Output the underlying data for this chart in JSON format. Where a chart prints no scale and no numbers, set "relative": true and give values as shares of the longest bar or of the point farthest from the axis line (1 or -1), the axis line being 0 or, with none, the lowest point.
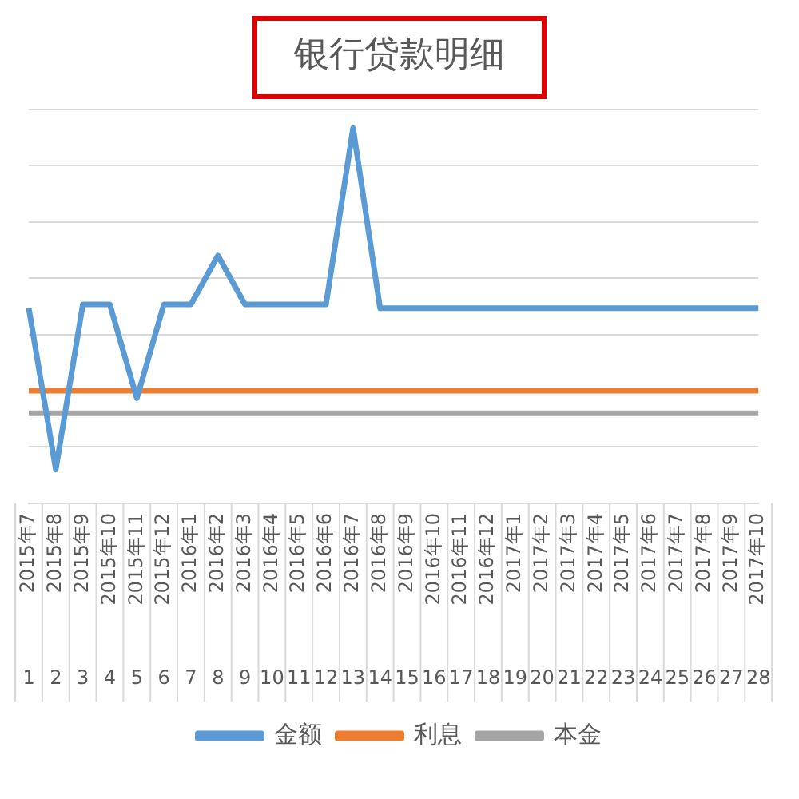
{
  "chart_data": {
    "type": "line",
    "title": "银行贷款明细",
    "relative": true,
    "categories": [
      "2015年7\n1",
      "2015年8\n2",
      "2015年9\n3",
      "2015年10\n4",
      "2015年11\n5",
      "2015年12\n6",
      "2016年1\n7",
      "2016年2\n8",
      "2016年3\n9",
      "2016年4\n10",
      "2016年5\n11",
      "2016年6\n12",
      "2016年7\n13",
      "2016年8\n14",
      "2016年9\n15",
      "2016年10\n16",
      "2016年11\n17",
      "2016年12\n18",
      "2017年1\n19",
      "2017年2\n20",
      "2017年3\n21",
      "2017年4\n22",
      "2017年5\n23",
      "2017年6\n24",
      "2017年7\n25",
      "2017年8\n26",
      "2017年9\n27",
      "2017年10\n28"
    ],
    "series": [
      {
        "name": "金额",
        "color": "#5b9bd5",
        "values": [
          0.52,
          0.09,
          0.53,
          0.53,
          0.28,
          0.53,
          0.53,
          0.66,
          0.53,
          0.53,
          0.53,
          0.53,
          1,
          0.52,
          0.52,
          0.52,
          0.52,
          0.52,
          0.52,
          0.52,
          0.52,
          0.52,
          0.52,
          0.52,
          0.52,
          0.52,
          0.52,
          0.52
        ]
      },
      {
        "name": "利息",
        "color": "#ed7d31",
        "values": [
          0.3,
          0.3,
          0.3,
          0.3,
          0.3,
          0.3,
          0.3,
          0.3,
          0.3,
          0.3,
          0.3,
          0.3,
          0.3,
          0.3,
          0.3,
          0.3,
          0.3,
          0.3,
          0.3,
          0.3,
          0.3,
          0.3,
          0.3,
          0.3,
          0.3,
          0.3,
          0.3,
          0.3
        ]
      },
      {
        "name": "本金",
        "color": "#a5a5a5",
        "values": [
          0.24,
          0.24,
          0.24,
          0.24,
          0.24,
          0.24,
          0.24,
          0.24,
          0.24,
          0.24,
          0.24,
          0.24,
          0.24,
          0.24,
          0.24,
          0.24,
          0.24,
          0.24,
          0.24,
          0.24,
          0.24,
          0.24,
          0.24,
          0.24,
          0.24,
          0.24,
          0.24,
          0.24
        ]
      }
    ],
    "grid": "y",
    "legend": "bottom",
    "marker": "none",
    "line_style": "solid"
  }
}
